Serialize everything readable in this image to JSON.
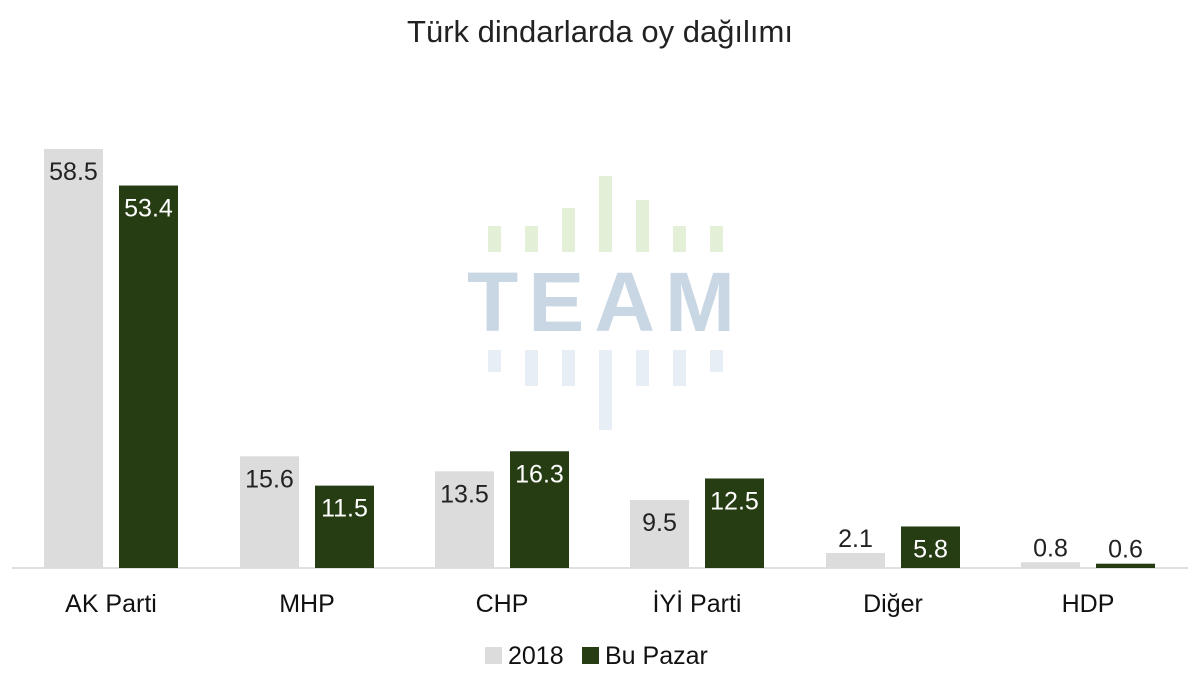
{
  "chart_data": {
    "type": "bar",
    "title": "Türk dindarlarda oy dağılımı",
    "categories": [
      "AK Parti",
      "MHP",
      "CHP",
      "İYİ Parti",
      "Diğer",
      "HDP"
    ],
    "series": [
      {
        "name": "2018",
        "values": [
          58.5,
          15.6,
          13.5,
          9.5,
          2.1,
          0.8
        ],
        "color": "#dcdcdc",
        "label_color": "#222222"
      },
      {
        "name": "Bu Pazar",
        "values": [
          53.4,
          11.5,
          16.3,
          12.5,
          5.8,
          0.6
        ],
        "color": "#263d14",
        "label_color": "#ffffff"
      }
    ],
    "value_labels": [
      [
        "58.5",
        "15.6",
        "13.5",
        "9.5",
        "2.1",
        "0.8"
      ],
      [
        "53.4",
        "11.5",
        "16.3",
        "12.5",
        "5.8",
        "0.6"
      ]
    ],
    "ylim": [
      0,
      65
    ],
    "grid": false,
    "legend_position": "bottom-center",
    "xlabel": "",
    "ylabel": ""
  },
  "watermark": {
    "text": "TEAM",
    "text_color": "#c9d6e3",
    "bar_color_top": "#e3efd6",
    "bar_color_bottom": "#e7eef5"
  }
}
